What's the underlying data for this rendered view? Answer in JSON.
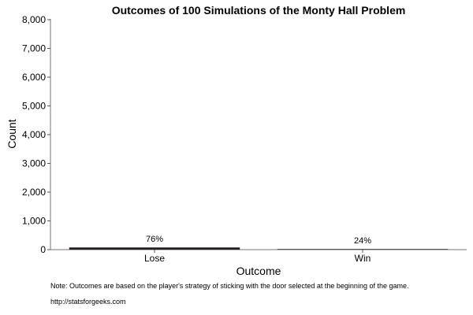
{
  "chart_data": {
    "type": "bar",
    "title": "Outcomes of 100 Simulations of the Monty Hall Problem",
    "xlabel": "Outcome",
    "ylabel": "Count",
    "categories": [
      "Lose",
      "Win"
    ],
    "values": [
      76,
      24
    ],
    "data_labels": [
      "76%",
      "24%"
    ],
    "ylim": [
      0,
      8000
    ],
    "yticks": [
      0,
      1000,
      2000,
      3000,
      4000,
      5000,
      6000,
      7000,
      8000
    ],
    "ytick_labels": [
      "0",
      "1,000",
      "2,000",
      "3,000",
      "4,000",
      "5,000",
      "6,000",
      "7,000",
      "8,000"
    ],
    "grid": false,
    "legend": "none",
    "bar_colors": [
      "#2b1d1d",
      "#3d3d3d"
    ]
  },
  "notes": {
    "note": "Note: Outcomes are based on the player's strategy of sticking with the door selected at the beginning of the game.",
    "source": "http://statsforgeeks.com"
  }
}
